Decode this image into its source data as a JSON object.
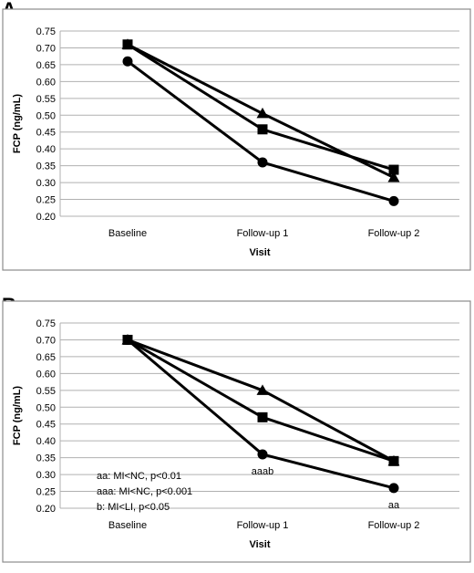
{
  "chart_data": [
    {
      "panel": "A",
      "type": "line",
      "categories": [
        "Baseline",
        "Follow-up 1",
        "Follow-up 2"
      ],
      "xlabel": "Visit",
      "ylabel": "FCP (ng/mL)",
      "ylim": [
        0.2,
        0.75
      ],
      "yticks": [
        "0.20",
        "0.25",
        "0.30",
        "0.35",
        "0.40",
        "0.45",
        "0.50",
        "0.55",
        "0.60",
        "0.65",
        "0.70",
        "0.75"
      ],
      "grid": true,
      "series": [
        {
          "marker": "triangle",
          "values": [
            0.71,
            0.505,
            0.315
          ]
        },
        {
          "marker": "square",
          "values": [
            0.71,
            0.458,
            0.338
          ]
        },
        {
          "marker": "circle",
          "values": [
            0.66,
            0.36,
            0.245
          ]
        }
      ],
      "annotations": [],
      "notes": []
    },
    {
      "panel": "B",
      "type": "line",
      "categories": [
        "Baseline",
        "Follow-up 1",
        "Follow-up 2"
      ],
      "xlabel": "Visit",
      "ylabel": "FCP (ng/mL)",
      "ylim": [
        0.2,
        0.75
      ],
      "yticks": [
        "0.20",
        "0.25",
        "0.30",
        "0.35",
        "0.40",
        "0.45",
        "0.50",
        "0.55",
        "0.60",
        "0.65",
        "0.70",
        "0.75"
      ],
      "grid": true,
      "series": [
        {
          "marker": "triangle",
          "values": [
            0.7,
            0.55,
            0.34
          ]
        },
        {
          "marker": "square",
          "values": [
            0.7,
            0.47,
            0.34
          ]
        },
        {
          "marker": "circle",
          "values": [
            0.7,
            0.36,
            0.26
          ]
        }
      ],
      "annotations": [
        {
          "text": "aaab",
          "category": 1,
          "series": 2
        },
        {
          "text": "aa",
          "category": 2,
          "series": 2
        }
      ],
      "notes": [
        "aa: MI<NC, p<0.01",
        "aaa: MI<NC, p<0.001",
        "b: MI<LI, p<0.05"
      ]
    }
  ]
}
